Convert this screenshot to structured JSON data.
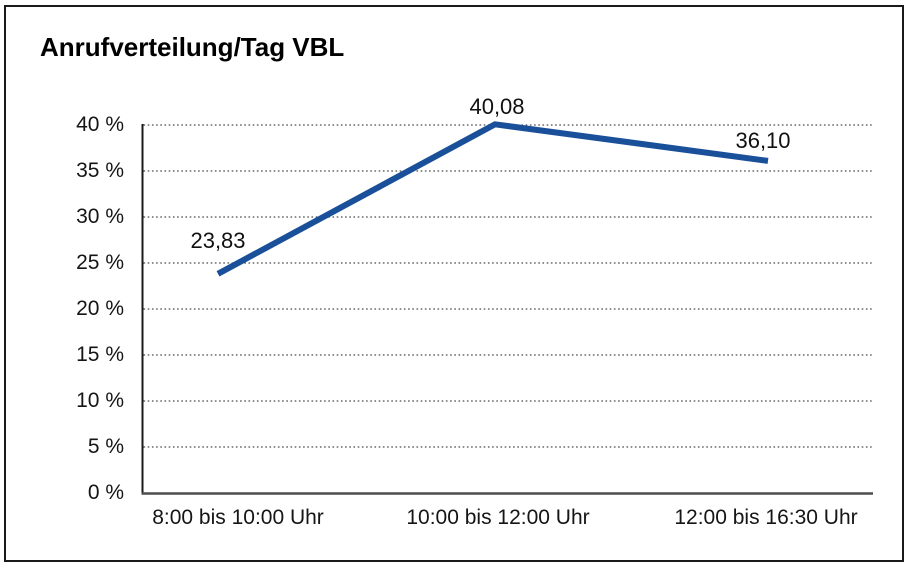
{
  "title": "Anrufverteilung/Tag VBL",
  "chart_data": {
    "type": "line",
    "title": "Anrufverteilung/Tag VBL",
    "categories": [
      "8:00 bis 10:00 Uhr",
      "10:00 bis 12:00 Uhr",
      "12:00 bis 16:30 Uhr"
    ],
    "values": [
      23.83,
      40.08,
      36.1
    ],
    "data_labels": [
      "23,83",
      "40,08",
      "36,10"
    ],
    "data_label_position": "above",
    "xlabel": "",
    "ylabel": "",
    "ylim": [
      0,
      40
    ],
    "ytick_step": 5,
    "ytick_labels": [
      "0 %",
      "5 %",
      "10 %",
      "15 %",
      "20 %",
      "25 %",
      "30 %",
      "35 %",
      "40 %"
    ],
    "grid": "horizontal-dotted",
    "legend": "none"
  },
  "colors": {
    "line": "#1a4f9a",
    "grid": "#4a4a4a",
    "y_axis": "#1a1a1a",
    "x_axis": "#4d4d4d",
    "text": "#151515",
    "border": "#1a1a1a",
    "background": "#ffffff"
  }
}
